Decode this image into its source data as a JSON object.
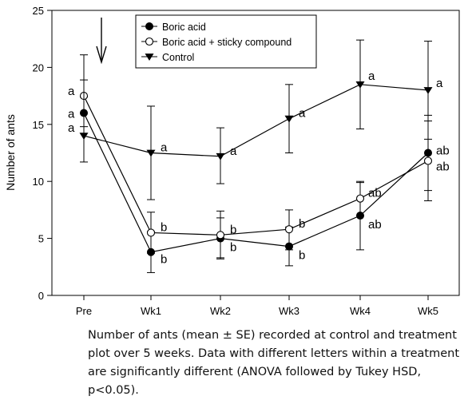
{
  "chart_data": {
    "type": "line",
    "ylabel": "Number of ants",
    "xlabel": "",
    "ylim": [
      0,
      25
    ],
    "yticks": [
      0,
      5,
      10,
      15,
      20,
      25
    ],
    "categories": [
      "Pre",
      "Wk1",
      "Wk2",
      "Wk3",
      "Wk4",
      "Wk5"
    ],
    "grid": false,
    "legend_placement": "top-center",
    "arrow_annotation_category": "Pre-Wk1",
    "series": [
      {
        "name": "Boric acid",
        "marker": "filled-circle",
        "values": [
          16,
          3.8,
          5.0,
          4.3,
          7.0,
          12.5
        ],
        "se_low": [
          14.8,
          2.0,
          3.2,
          2.6,
          4.0,
          9.2
        ],
        "se_high": [
          17.4,
          5.6,
          6.8,
          6.0,
          9.9,
          15.8
        ],
        "letters": [
          "a",
          "b",
          "b",
          "b",
          "ab",
          "ab"
        ]
      },
      {
        "name": "Boric acid + sticky compound",
        "marker": "open-circle",
        "values": [
          17.5,
          5.5,
          5.3,
          5.8,
          8.5,
          11.8
        ],
        "se_low": [
          16.0,
          3.7,
          3.3,
          4.0,
          7.0,
          8.3
        ],
        "se_high": [
          18.9,
          7.3,
          7.4,
          7.5,
          10.0,
          15.3
        ],
        "letters": [
          "a",
          "b",
          "b",
          "b",
          "ab",
          "ab"
        ]
      },
      {
        "name": "Control",
        "marker": "filled-triangle-down",
        "values": [
          14,
          12.5,
          12.2,
          15.5,
          18.5,
          18.0
        ],
        "se_low": [
          11.7,
          8.4,
          9.8,
          12.5,
          14.6,
          13.7
        ],
        "se_high": [
          21.1,
          16.6,
          14.7,
          18.5,
          22.4,
          22.3
        ],
        "letters": [
          "a",
          "a",
          "a",
          "a",
          "a",
          "a"
        ]
      }
    ]
  },
  "caption": {
    "line1": "Number of ants (mean ± SE) recorded at control and treatment",
    "line2": "plot over 5 weeks. Data with different letters within a treatment",
    "line3": "are significantly different (ANOVA followed by Tukey HSD, p<0.05)."
  }
}
